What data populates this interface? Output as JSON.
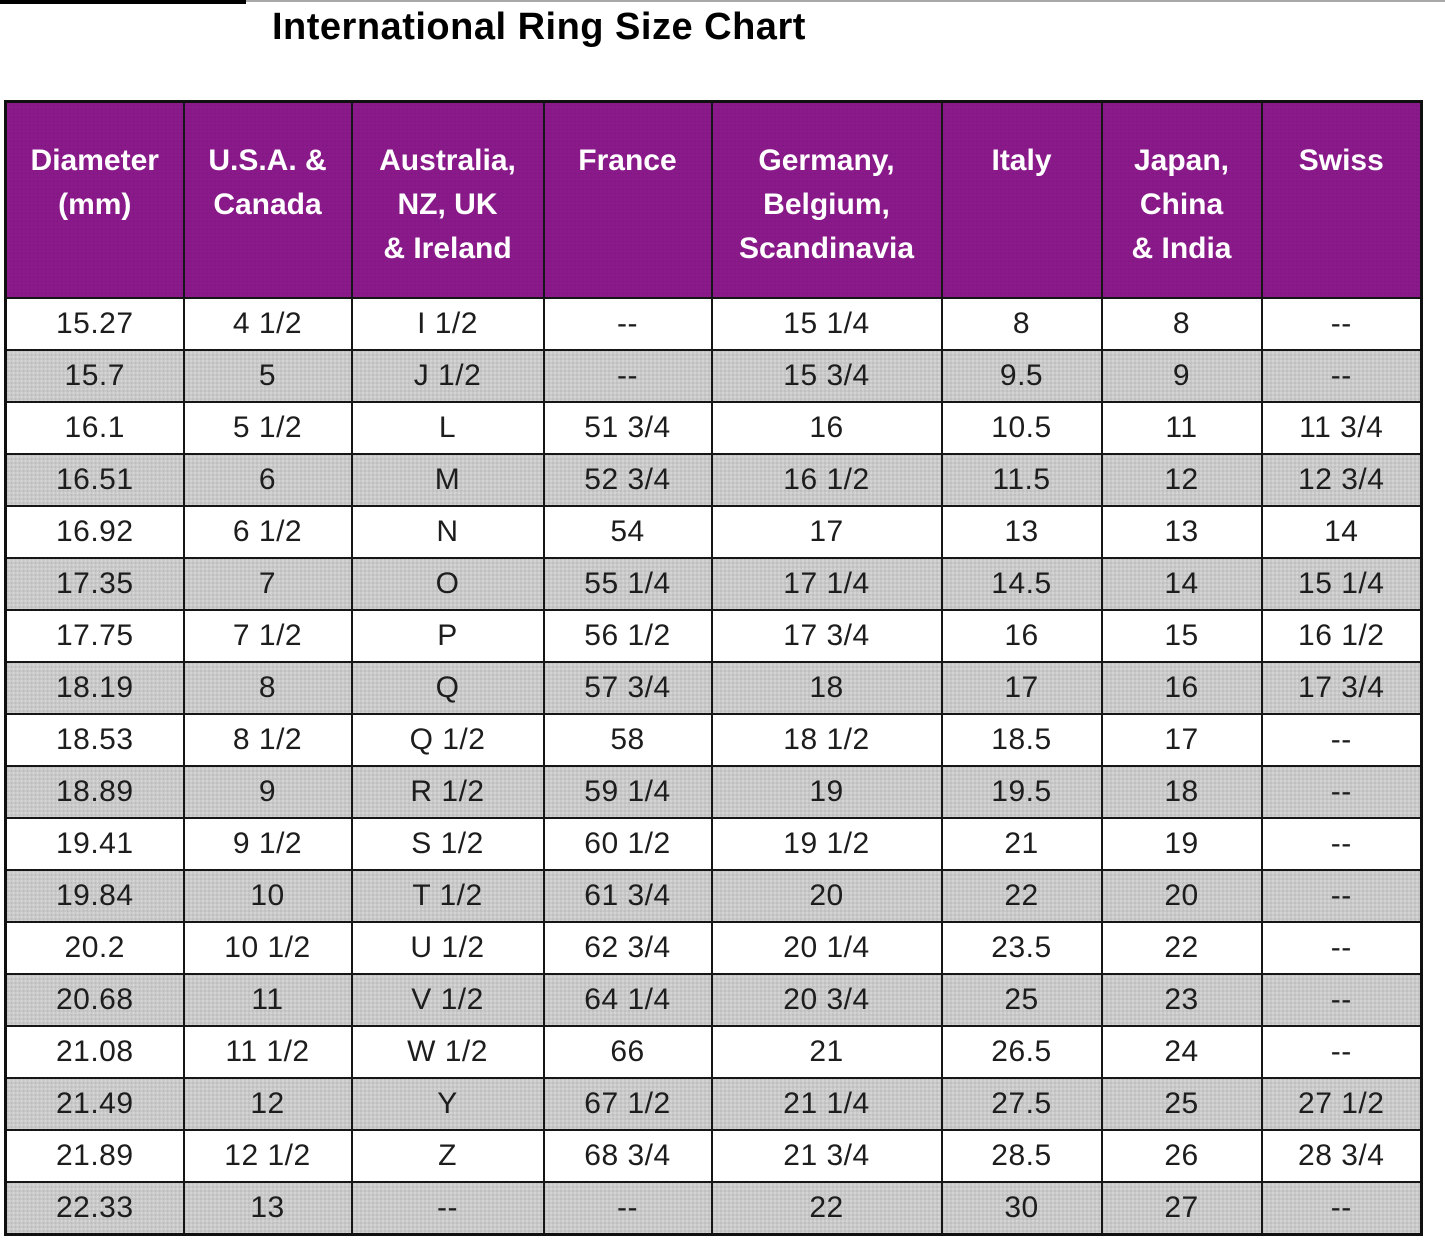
{
  "page": {
    "title": "International Ring Size Chart"
  },
  "colors": {
    "header_bg": "#8a1a8a",
    "stripe_bg": "#c9c9c9",
    "grid": "#161616",
    "header_text": "#ffffff",
    "body_text": "#1d1d1d"
  },
  "chart_data": {
    "type": "table",
    "title": "International Ring Size Chart",
    "columns": [
      "Diameter\n(mm)",
      "U.S.A. &\nCanada",
      "Australia,\nNZ, UK\n& Ireland",
      "France",
      "Germany,\nBelgium,\nScandinavia",
      "Italy",
      "Japan,\nChina\n& India",
      "Swiss"
    ],
    "rows": [
      [
        "15.27",
        "4 1/2",
        "I 1/2",
        "--",
        "15 1/4",
        "8",
        "8",
        "--"
      ],
      [
        "15.7",
        "5",
        "J 1/2",
        "--",
        "15 3/4",
        "9.5",
        "9",
        "--"
      ],
      [
        "16.1",
        "5 1/2",
        "L",
        "51 3/4",
        "16",
        "10.5",
        "11",
        "11 3/4"
      ],
      [
        "16.51",
        "6",
        "M",
        "52 3/4",
        "16 1/2",
        "11.5",
        "12",
        "12 3/4"
      ],
      [
        "16.92",
        "6 1/2",
        "N",
        "54",
        "17",
        "13",
        "13",
        "14"
      ],
      [
        "17.35",
        "7",
        "O",
        "55 1/4",
        "17 1/4",
        "14.5",
        "14",
        "15 1/4"
      ],
      [
        "17.75",
        "7 1/2",
        "P",
        "56 1/2",
        "17 3/4",
        "16",
        "15",
        "16 1/2"
      ],
      [
        "18.19",
        "8",
        "Q",
        "57 3/4",
        "18",
        "17",
        "16",
        "17 3/4"
      ],
      [
        "18.53",
        "8 1/2",
        "Q 1/2",
        "58",
        "18 1/2",
        "18.5",
        "17",
        "--"
      ],
      [
        "18.89",
        "9",
        "R 1/2",
        "59 1/4",
        "19",
        "19.5",
        "18",
        "--"
      ],
      [
        "19.41",
        "9 1/2",
        "S 1/2",
        "60 1/2",
        "19 1/2",
        "21",
        "19",
        "--"
      ],
      [
        "19.84",
        "10",
        "T 1/2",
        "61 3/4",
        "20",
        "22",
        "20",
        "--"
      ],
      [
        "20.2",
        "10 1/2",
        "U 1/2",
        "62 3/4",
        "20 1/4",
        "23.5",
        "22",
        "--"
      ],
      [
        "20.68",
        "11",
        "V 1/2",
        "64 1/4",
        "20 3/4",
        "25",
        "23",
        "--"
      ],
      [
        "21.08",
        "11 1/2",
        "W 1/2",
        "66",
        "21",
        "26.5",
        "24",
        "--"
      ],
      [
        "21.49",
        "12",
        "Y",
        "67 1/2",
        "21 1/4",
        "27.5",
        "25",
        "27 1/2"
      ],
      [
        "21.89",
        "12 1/2",
        "Z",
        "68 3/4",
        "21 3/4",
        "28.5",
        "26",
        "28 3/4"
      ],
      [
        "22.33",
        "13",
        "--",
        "--",
        "22",
        "30",
        "27",
        "--"
      ]
    ]
  }
}
